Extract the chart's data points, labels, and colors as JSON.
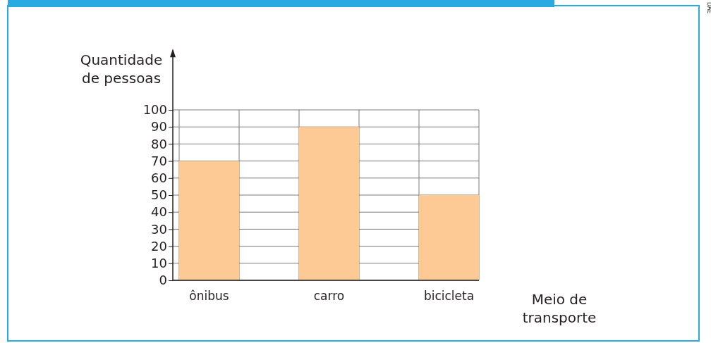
{
  "chart_data": {
    "type": "bar",
    "xlabel": "Meio de\ntransporte",
    "ylabel": "Quantidade\nde pessoas",
    "categories": [
      "ônibus",
      null,
      "carro",
      null,
      "bicicleta"
    ],
    "values": [
      70,
      null,
      90,
      null,
      50
    ],
    "color": "#fdc994",
    "ylim": [
      0,
      135
    ],
    "yticks": [
      0,
      10,
      20,
      30,
      40,
      50,
      60,
      70,
      80,
      90,
      100
    ],
    "grid": true,
    "annotations": [
      "DAE"
    ]
  }
}
